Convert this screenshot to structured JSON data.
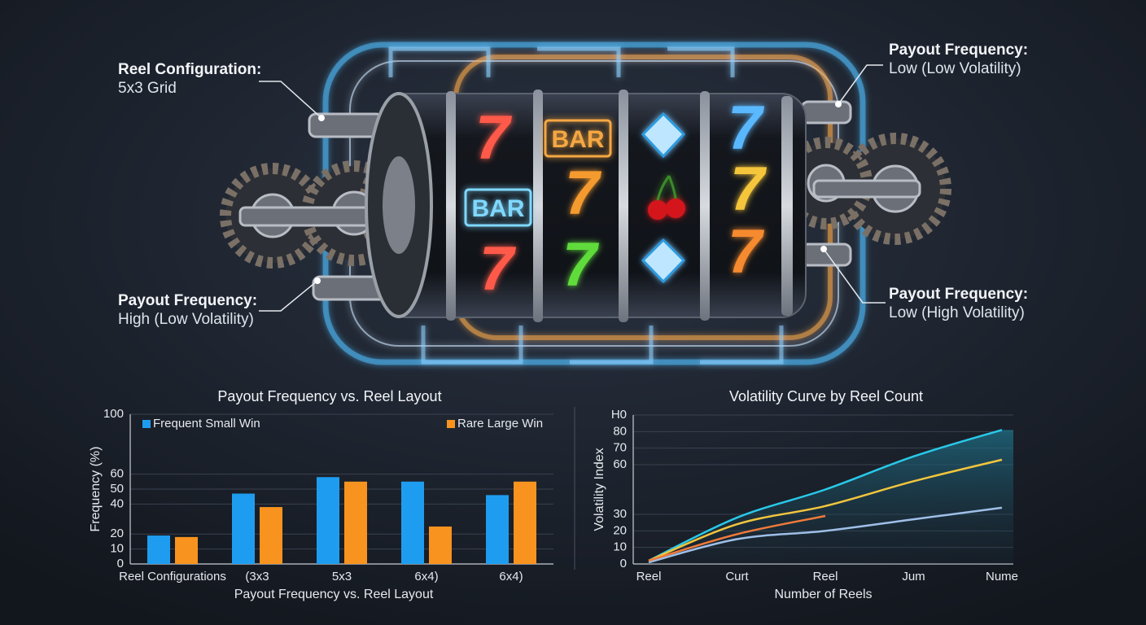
{
  "callouts": [
    {
      "title": "Reel Configuration:",
      "text": "5x3 Grid"
    },
    {
      "title": "Payout Frequency:",
      "text": "High (Low Volatility)"
    },
    {
      "title": "Payout Frequency:",
      "text": "Low (Low Volatility)"
    },
    {
      "title": "Payout Frequency:",
      "text": "Low (High Volatility)"
    }
  ],
  "reel_symbols": [
    "7",
    "BAR",
    "7",
    "BAR",
    "7",
    "7",
    "7",
    "7",
    "7"
  ],
  "chart_data": [
    {
      "type": "bar",
      "title": "Payout Frequency vs. Reel Layout",
      "x_label": "Payout Frequency vs. Reel Layout",
      "y_label": "Frequency (%)",
      "categories": [
        "Reel Configurations",
        "(3x3",
        "5x3",
        "6x4)",
        "6x4)"
      ],
      "series": [
        {
          "name": "Frequent Small Win",
          "color": "#1e9df0",
          "values": [
            19,
            47,
            58,
            55,
            46
          ]
        },
        {
          "name": "Rare Large Win",
          "color": "#f7931e",
          "values": [
            18,
            38,
            55,
            25,
            55
          ]
        }
      ],
      "ylim": [
        0,
        100
      ],
      "yticks": [
        0,
        10,
        20,
        40,
        50,
        60,
        100
      ],
      "grid": true
    },
    {
      "type": "line",
      "title": "Volatility Curve by Reel Count",
      "x_label": "Number of Reels",
      "y_label": "Volatility Index",
      "categories": [
        "Reel",
        "Curt",
        "Reel",
        "Jum",
        "Nume"
      ],
      "series": [
        {
          "color": "#29c9e8",
          "values": [
            2,
            28,
            45,
            65,
            81
          ]
        },
        {
          "color": "#f2c53d",
          "values": [
            2,
            24,
            35,
            50,
            63
          ]
        },
        {
          "color": "#9fbfe8",
          "values": [
            1,
            15,
            20,
            27,
            34
          ]
        },
        {
          "color": "#f07a3a",
          "values": [
            2,
            18,
            29,
            null,
            null
          ]
        }
      ],
      "ylim": [
        0,
        90
      ],
      "yticks": [
        0,
        10,
        20,
        30,
        60,
        70,
        80,
        {
          "value": 90,
          "label": "H0"
        }
      ],
      "grid": true
    }
  ]
}
